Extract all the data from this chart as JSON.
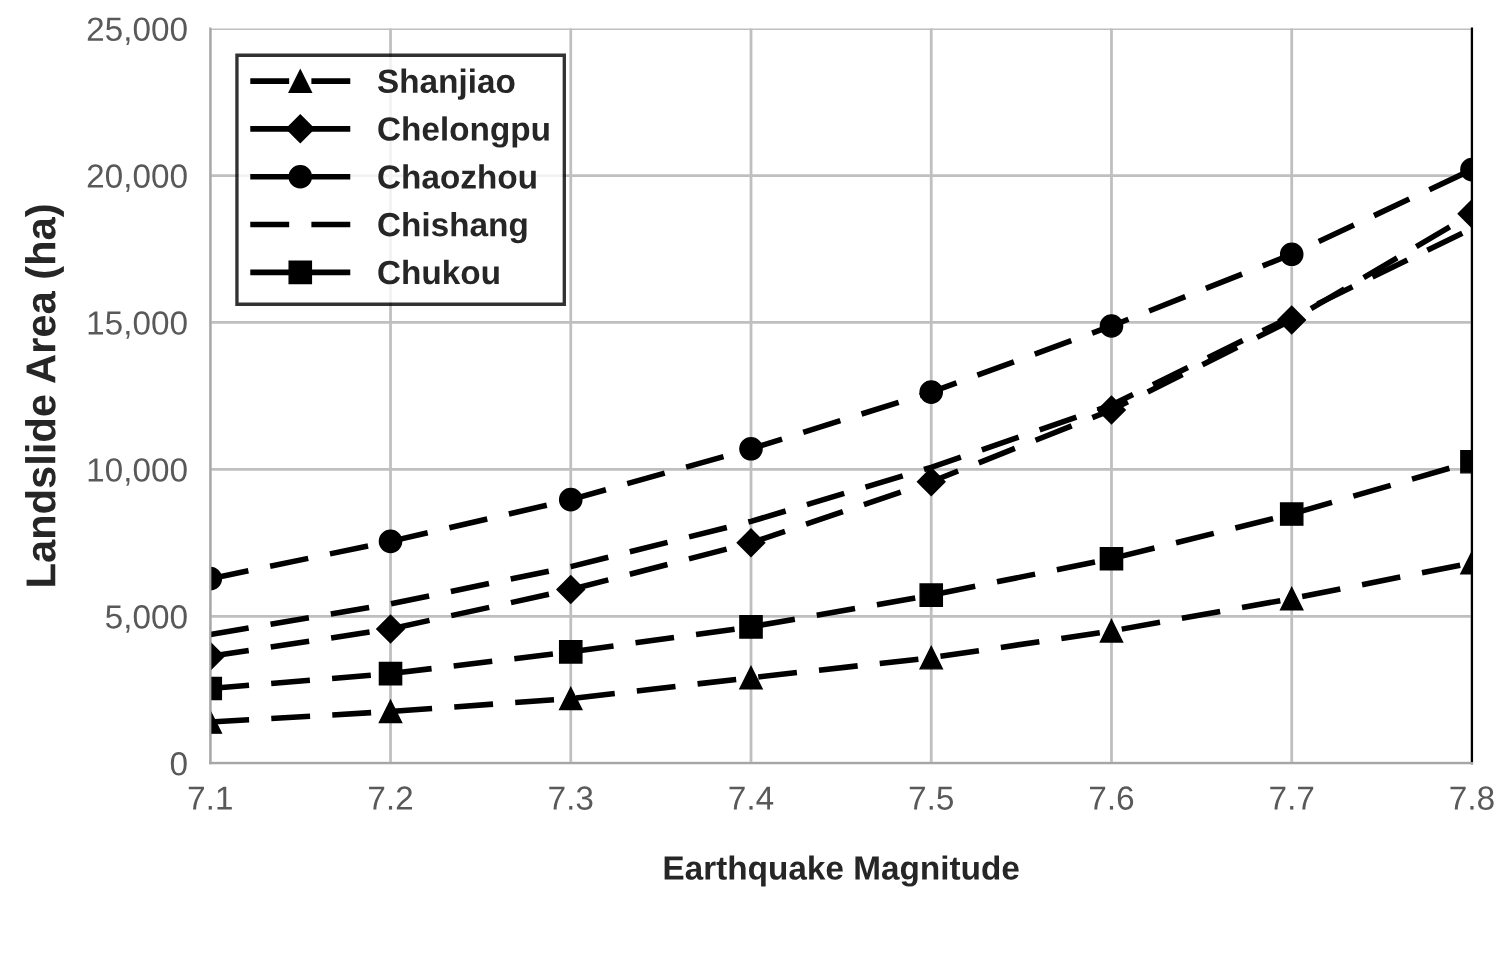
{
  "chart_data": {
    "type": "line",
    "xlabel": "Earthquake Magnitude",
    "ylabel": "Landslide Area (ha)",
    "x": [
      7.1,
      7.2,
      7.3,
      7.4,
      7.5,
      7.6,
      7.7,
      7.8
    ],
    "series": [
      {
        "name": "Shanjiao",
        "color": "#000000",
        "marker": "triangle",
        "values": [
          1400,
          1760,
          2200,
          2910,
          3590,
          4500,
          5600,
          6820
        ]
      },
      {
        "name": "Chelongpu",
        "color": "#000000",
        "marker": "diamond",
        "values": [
          3640,
          4570,
          5910,
          7500,
          9580,
          12020,
          15080,
          18700
        ]
      },
      {
        "name": "Chaozhou",
        "color": "#000000",
        "marker": "circle",
        "values": [
          6280,
          7550,
          8970,
          10700,
          12630,
          14880,
          17320,
          20200
        ]
      },
      {
        "name": "Chishang",
        "color": "#000000",
        "marker": "none",
        "values": [
          4380,
          5420,
          6690,
          8230,
          10070,
          12190,
          15200,
          18200
        ]
      },
      {
        "name": "Chukou",
        "color": "#000000",
        "marker": "square",
        "values": [
          2540,
          3050,
          3790,
          4640,
          5720,
          6960,
          8480,
          10260
        ]
      }
    ],
    "xlim": [
      7.1,
      7.8
    ],
    "xticks": [
      7.1,
      7.2,
      7.3,
      7.4,
      7.5,
      7.6,
      7.7,
      7.8
    ],
    "ylim": [
      0,
      25000
    ],
    "yticks": [
      {
        "value": 0,
        "label": "0"
      },
      {
        "value": 5000,
        "label": "5,000"
      },
      {
        "value": 10000,
        "label": "10,000"
      },
      {
        "value": 15000,
        "label": "15,000"
      },
      {
        "value": 20000,
        "label": "20,000"
      },
      {
        "value": 25000,
        "label": "25,000"
      }
    ],
    "grid": true,
    "legend": "top left",
    "line_style": "dashed"
  }
}
